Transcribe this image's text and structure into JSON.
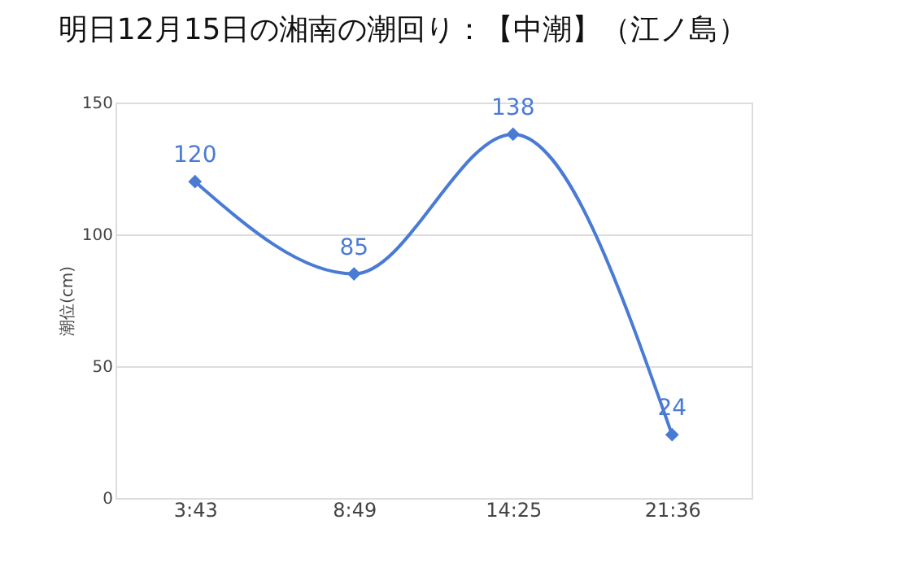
{
  "chart_data": {
    "type": "line",
    "title": "明日12月15日の湘南の潮回り：【中潮】（江ノ島）",
    "ylabel": "潮位(cm)",
    "categories": [
      "3:43",
      "8:49",
      "14:25",
      "21:36"
    ],
    "values": [
      120,
      85,
      138,
      24
    ],
    "color": "#4a7bd4",
    "ylim": [
      0,
      150
    ],
    "yticks": [
      0,
      50,
      100,
      150
    ],
    "grid": "y",
    "marker": "diamond",
    "line_style": "solid",
    "data_labels": true
  }
}
